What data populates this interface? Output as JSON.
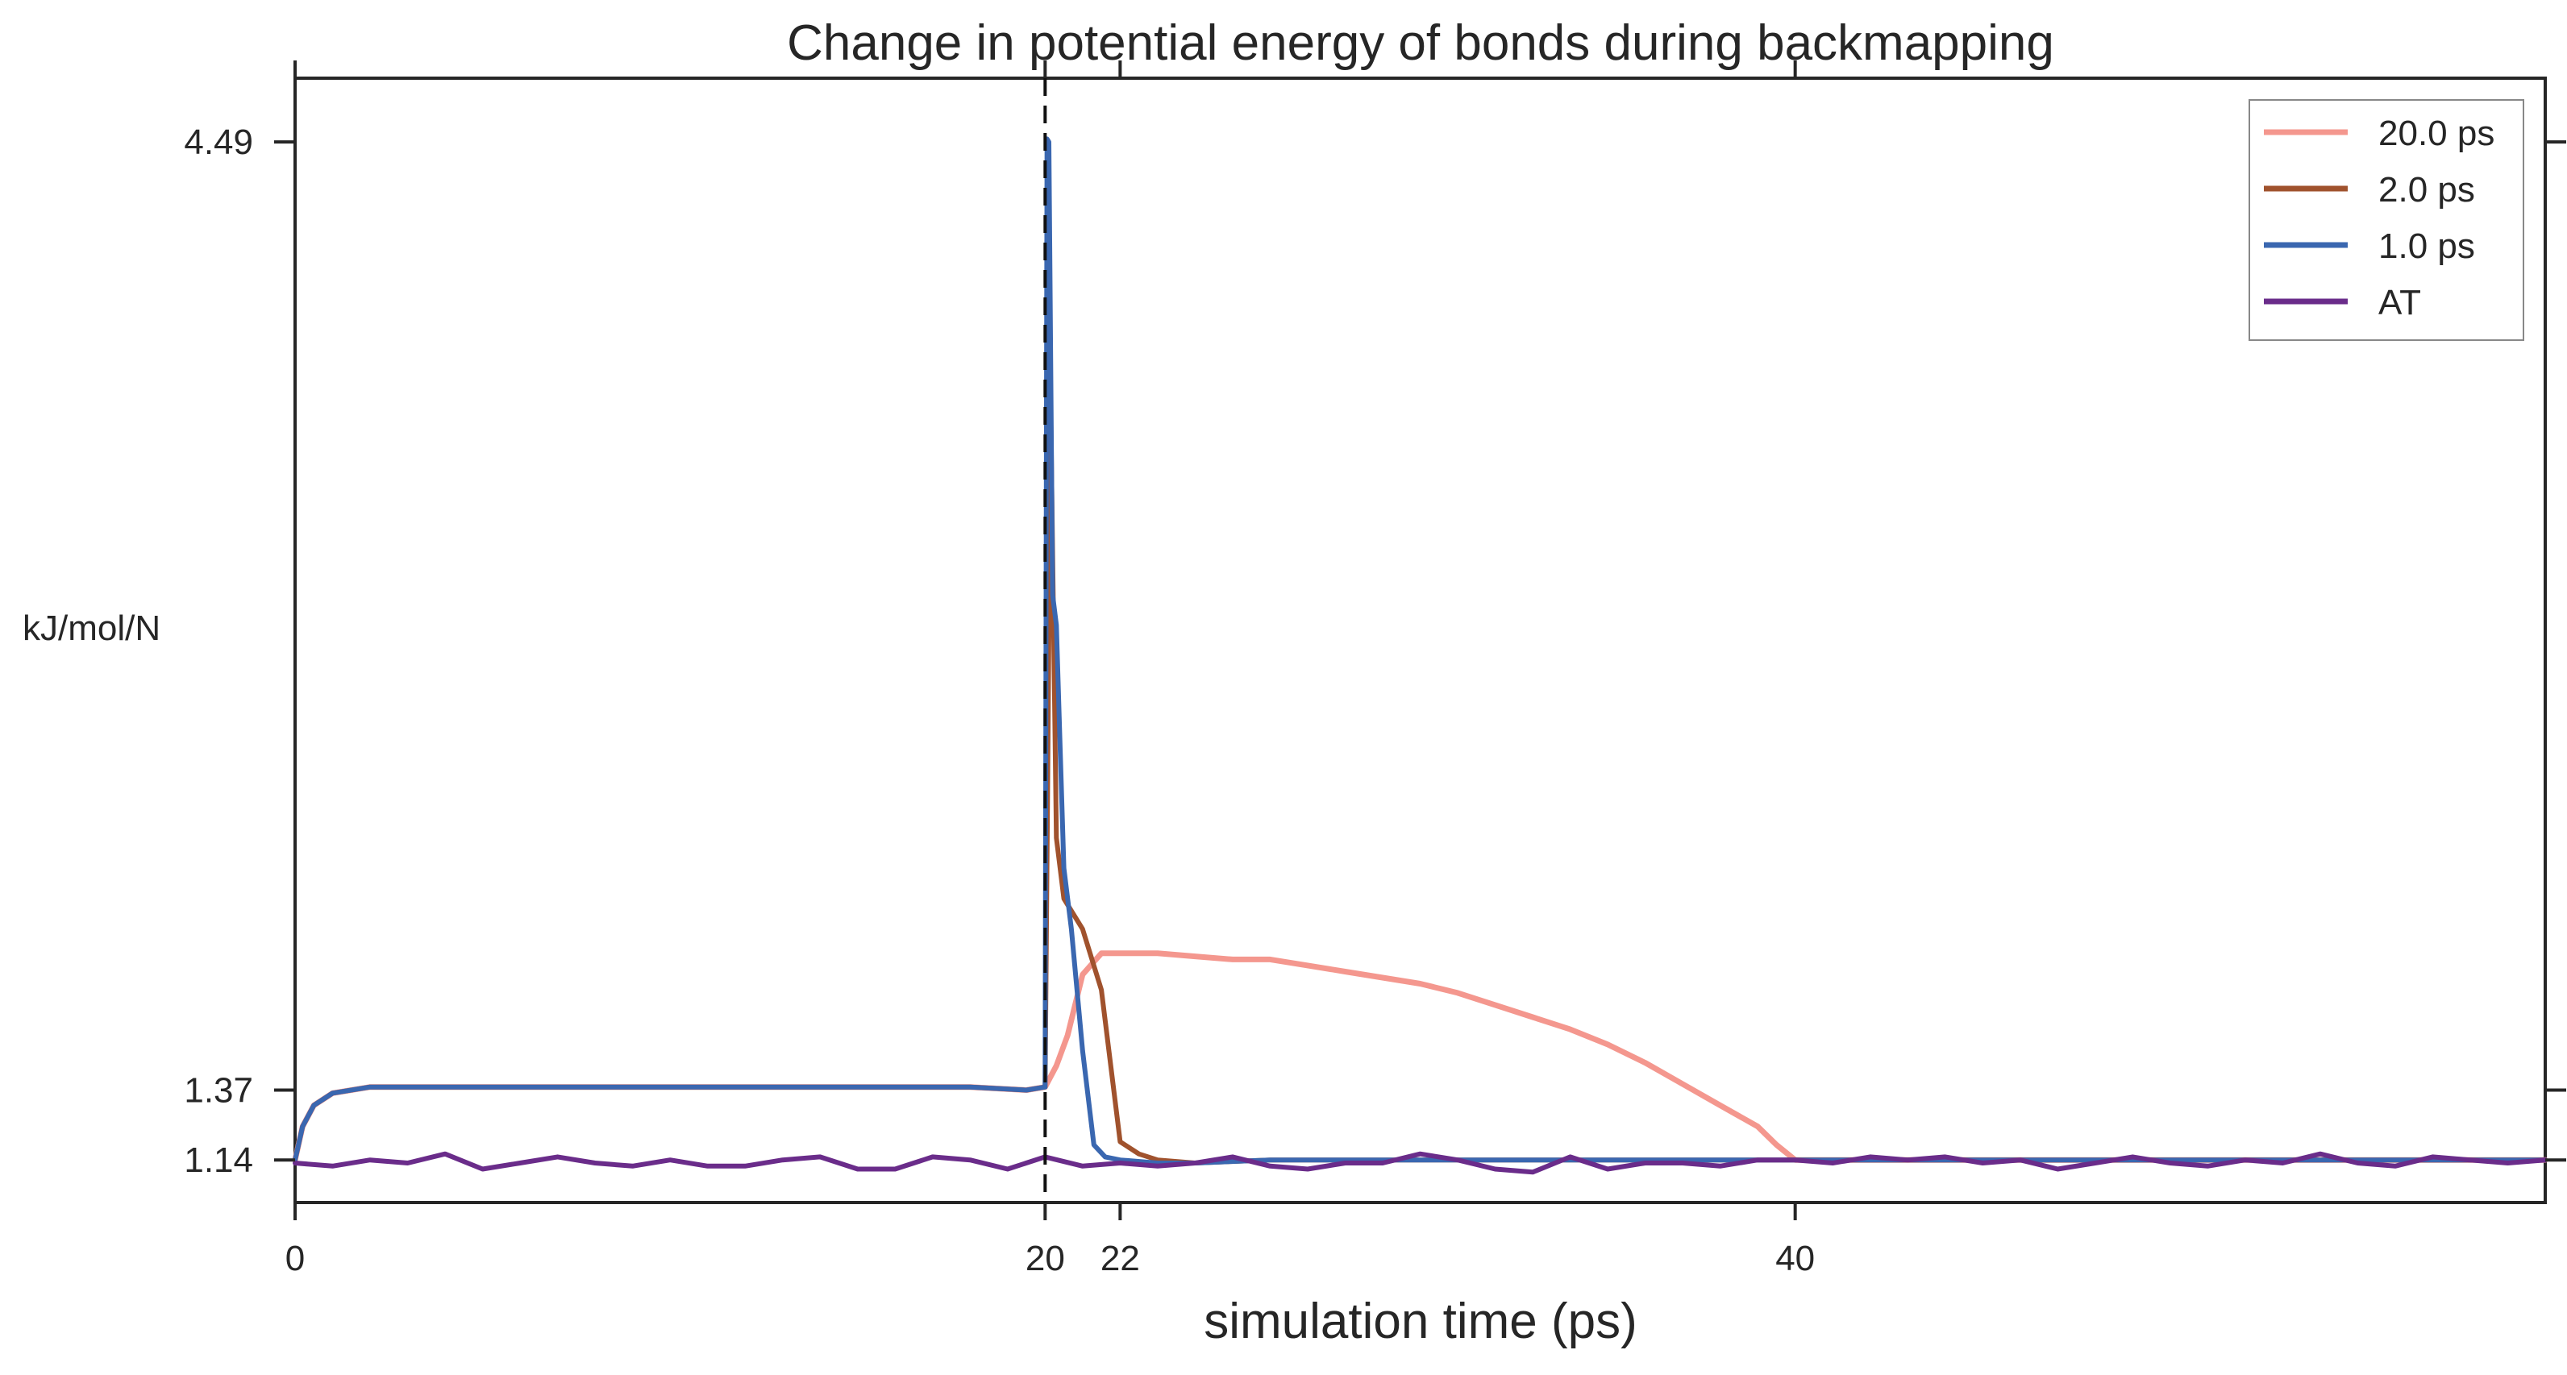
{
  "chart_data": {
    "type": "line",
    "title": "Change in potential energy of bonds during backmapping",
    "xlabel": "simulation time (ps)",
    "ylabel": "kJ/mol/N",
    "xlim": [
      0,
      60
    ],
    "ylim": [
      1.0,
      4.7
    ],
    "xticks": [
      0,
      20,
      22,
      40
    ],
    "xtick_labels": [
      "0",
      "20",
      "22",
      "40"
    ],
    "yticks": [
      1.14,
      1.37,
      4.49
    ],
    "ytick_labels": [
      "1.14",
      "1.37",
      "4.49"
    ],
    "vline_x": 20,
    "grid": false,
    "legend_position": "top-right",
    "series": [
      {
        "name": "20.0 ps",
        "color": "#f4978e",
        "x": [
          0,
          0.2,
          0.5,
          1,
          2,
          4,
          6,
          8,
          10,
          12,
          14,
          16,
          18,
          19.5,
          20,
          20.3,
          20.6,
          21,
          21.5,
          22,
          23,
          24,
          25,
          26,
          27,
          28,
          29,
          30,
          31,
          32,
          33,
          34,
          35,
          36,
          37,
          38,
          39,
          39.5,
          40,
          42,
          44,
          46,
          48,
          50,
          52,
          54,
          56,
          58,
          60
        ],
        "y": [
          1.14,
          1.25,
          1.32,
          1.36,
          1.38,
          1.38,
          1.38,
          1.38,
          1.38,
          1.38,
          1.38,
          1.38,
          1.38,
          1.37,
          1.38,
          1.45,
          1.55,
          1.75,
          1.82,
          1.82,
          1.82,
          1.81,
          1.8,
          1.8,
          1.78,
          1.76,
          1.74,
          1.72,
          1.69,
          1.65,
          1.61,
          1.57,
          1.52,
          1.46,
          1.39,
          1.32,
          1.25,
          1.19,
          1.14,
          1.14,
          1.14,
          1.14,
          1.14,
          1.14,
          1.14,
          1.14,
          1.14,
          1.14,
          1.14
        ]
      },
      {
        "name": "2.0 ps",
        "color": "#a0522d",
        "x": [
          0,
          0.2,
          0.5,
          1,
          2,
          4,
          6,
          8,
          10,
          12,
          14,
          16,
          18,
          19.5,
          20,
          20.15,
          20.3,
          20.5,
          21,
          21.5,
          22,
          22.5,
          23,
          24,
          26,
          28,
          30,
          32,
          34,
          36,
          38,
          40,
          42,
          44,
          46,
          48,
          50,
          52,
          54,
          56,
          58,
          60
        ],
        "y": [
          1.14,
          1.25,
          1.32,
          1.36,
          1.38,
          1.38,
          1.38,
          1.38,
          1.38,
          1.38,
          1.38,
          1.38,
          1.38,
          1.37,
          1.38,
          3.6,
          2.2,
          2.0,
          1.9,
          1.7,
          1.2,
          1.16,
          1.14,
          1.13,
          1.14,
          1.14,
          1.14,
          1.14,
          1.14,
          1.14,
          1.14,
          1.14,
          1.14,
          1.14,
          1.14,
          1.14,
          1.14,
          1.14,
          1.14,
          1.14,
          1.14,
          1.14
        ]
      },
      {
        "name": "1.0 ps",
        "color": "#3a67b0",
        "x": [
          0,
          0.2,
          0.5,
          1,
          2,
          4,
          6,
          8,
          10,
          12,
          14,
          16,
          18,
          19.5,
          20,
          20.05,
          20.1,
          20.2,
          20.3,
          20.4,
          20.5,
          20.7,
          21,
          21.3,
          21.6,
          22,
          23,
          24,
          26,
          28,
          30,
          32,
          34,
          36,
          38,
          40,
          42,
          44,
          46,
          48,
          50,
          52,
          54,
          56,
          58,
          60
        ],
        "y": [
          1.14,
          1.25,
          1.32,
          1.36,
          1.38,
          1.38,
          1.38,
          1.38,
          1.38,
          1.38,
          1.38,
          1.38,
          1.38,
          1.37,
          1.38,
          4.5,
          4.49,
          3.0,
          2.9,
          2.5,
          2.1,
          1.9,
          1.5,
          1.19,
          1.15,
          1.14,
          1.13,
          1.13,
          1.14,
          1.14,
          1.14,
          1.14,
          1.14,
          1.14,
          1.14,
          1.14,
          1.14,
          1.14,
          1.14,
          1.14,
          1.14,
          1.14,
          1.14,
          1.14,
          1.14,
          1.14
        ]
      },
      {
        "name": "AT",
        "color": "#6a2c8a",
        "x": [
          0,
          1,
          2,
          3,
          4,
          5,
          6,
          7,
          8,
          9,
          10,
          11,
          12,
          13,
          14,
          15,
          16,
          17,
          18,
          19,
          20,
          21,
          22,
          23,
          24,
          25,
          26,
          27,
          28,
          29,
          30,
          31,
          32,
          33,
          34,
          35,
          36,
          37,
          38,
          39,
          40,
          41,
          42,
          43,
          44,
          45,
          46,
          47,
          48,
          49,
          50,
          51,
          52,
          53,
          54,
          55,
          56,
          57,
          58,
          59,
          60
        ],
        "y": [
          1.13,
          1.12,
          1.14,
          1.13,
          1.16,
          1.11,
          1.13,
          1.15,
          1.13,
          1.12,
          1.14,
          1.12,
          1.12,
          1.14,
          1.15,
          1.11,
          1.11,
          1.15,
          1.14,
          1.11,
          1.15,
          1.12,
          1.13,
          1.12,
          1.13,
          1.15,
          1.12,
          1.11,
          1.13,
          1.13,
          1.16,
          1.14,
          1.11,
          1.1,
          1.15,
          1.11,
          1.13,
          1.13,
          1.12,
          1.14,
          1.14,
          1.13,
          1.15,
          1.14,
          1.15,
          1.13,
          1.14,
          1.11,
          1.13,
          1.15,
          1.13,
          1.12,
          1.14,
          1.13,
          1.16,
          1.13,
          1.12,
          1.15,
          1.14,
          1.13,
          1.14
        ]
      }
    ]
  }
}
